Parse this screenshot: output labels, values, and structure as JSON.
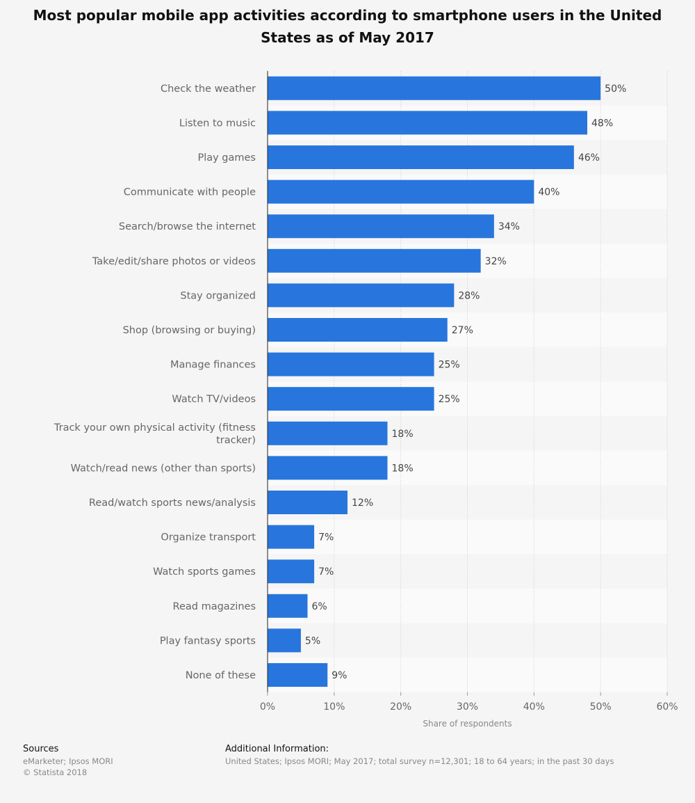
{
  "chart_data": {
    "type": "bar",
    "orientation": "horizontal",
    "title": "Most popular mobile app activities according to smartphone users in the United States as of May 2017",
    "categories": [
      "Check the weather",
      "Listen to music",
      "Play games",
      "Communicate with people",
      "Search/browse the internet",
      "Take/edit/share photos or videos",
      "Stay organized",
      "Shop (browsing or buying)",
      "Manage finances",
      "Watch TV/videos",
      "Track your own physical activity (fitness tracker)",
      "Watch/read news (other than sports)",
      "Read/watch sports news/analysis",
      "Organize transport",
      "Watch sports games",
      "Read magazines",
      "Play fantasy sports",
      "None of these"
    ],
    "values": [
      50,
      48,
      46,
      40,
      34,
      32,
      28,
      27,
      25,
      25,
      18,
      18,
      12,
      7,
      7,
      6,
      5,
      9
    ],
    "value_labels": [
      "50%",
      "48%",
      "46%",
      "40%",
      "34%",
      "32%",
      "28%",
      "27%",
      "25%",
      "25%",
      "18%",
      "18%",
      "12%",
      "7%",
      "7%",
      "6%",
      "5%",
      "9%"
    ],
    "xlabel": "Share of respondents",
    "xlim": [
      0,
      60
    ],
    "xticks": [
      0,
      10,
      20,
      30,
      40,
      50,
      60
    ],
    "xtick_labels": [
      "0%",
      "10%",
      "20%",
      "30%",
      "40%",
      "50%",
      "60%"
    ],
    "grid": true,
    "bar_color": "#2876dd"
  },
  "footer": {
    "sources_heading": "Sources",
    "sources_lines": [
      "eMarketer; Ipsos MORI",
      "© Statista 2018"
    ],
    "additional_heading": "Additional Information:",
    "additional_text": "United States; Ipsos MORI; May 2017; total survey n=12,301; 18 to 64 years; in the past 30 days"
  }
}
